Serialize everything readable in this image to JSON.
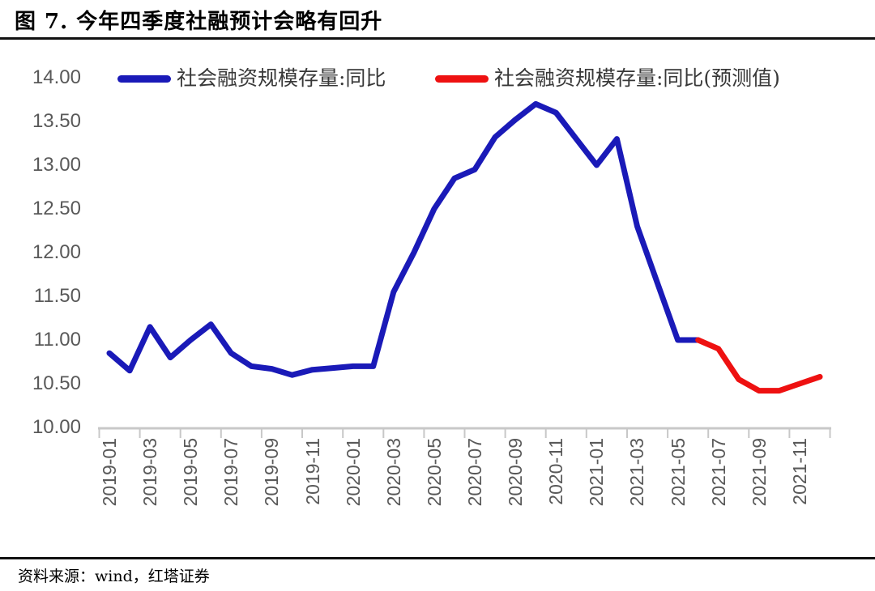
{
  "title": "图 7. 今年四季度社融预计会略有回升",
  "footer": {
    "source": "资料来源：wind，红塔证券"
  },
  "colors": {
    "actual": "#1A1AB8",
    "forecast": "#EE1111",
    "axis": "#C8C8C8",
    "tick_labels": "#595959",
    "text": "#000000"
  },
  "chart_data": {
    "type": "line",
    "x": [
      "2019-01",
      "2019-02",
      "2019-03",
      "2019-04",
      "2019-05",
      "2019-06",
      "2019-07",
      "2019-08",
      "2019-09",
      "2019-10",
      "2019-11",
      "2019-12",
      "2020-01",
      "2020-02",
      "2020-03",
      "2020-04",
      "2020-05",
      "2020-06",
      "2020-07",
      "2020-08",
      "2020-09",
      "2020-10",
      "2020-11",
      "2020-12",
      "2021-01",
      "2021-02",
      "2021-03",
      "2021-04",
      "2021-05",
      "2021-06",
      "2021-07",
      "2021-08",
      "2021-09",
      "2021-10",
      "2021-11",
      "2021-12"
    ],
    "series": [
      {
        "label": "社会融资规模存量:同比",
        "color_key": "actual",
        "start_index": 0,
        "values": [
          10.85,
          10.65,
          11.15,
          10.8,
          11.0,
          11.18,
          10.85,
          10.7,
          10.67,
          10.6,
          10.66,
          10.68,
          10.7,
          10.7,
          11.55,
          12.0,
          12.5,
          12.85,
          12.95,
          13.32,
          13.52,
          13.7,
          13.6,
          13.3,
          13.0,
          13.3,
          12.3,
          11.65,
          11.0,
          11.0
        ]
      },
      {
        "label": "社会融资规模存量:同比(预测值)",
        "color_key": "forecast",
        "start_index": 29,
        "values": [
          11.0,
          10.9,
          10.55,
          10.42,
          10.42,
          10.5,
          10.58
        ]
      }
    ],
    "ylim": [
      10.0,
      14.0
    ],
    "ytick_step": 0.5,
    "ytick_labels": [
      "14.00",
      "13.50",
      "13.00",
      "12.50",
      "12.00",
      "11.50",
      "11.00",
      "10.50",
      "10.00"
    ],
    "xtick_labels": [
      "2019-01",
      "2019-03",
      "2019-05",
      "2019-07",
      "2019-09",
      "2019-11",
      "2020-01",
      "2020-03",
      "2020-05",
      "2020-07",
      "2020-09",
      "2020-11",
      "2021-01",
      "2021-03",
      "2021-05",
      "2021-07",
      "2021-09",
      "2021-11"
    ],
    "grid": false,
    "legend_position": "top"
  }
}
